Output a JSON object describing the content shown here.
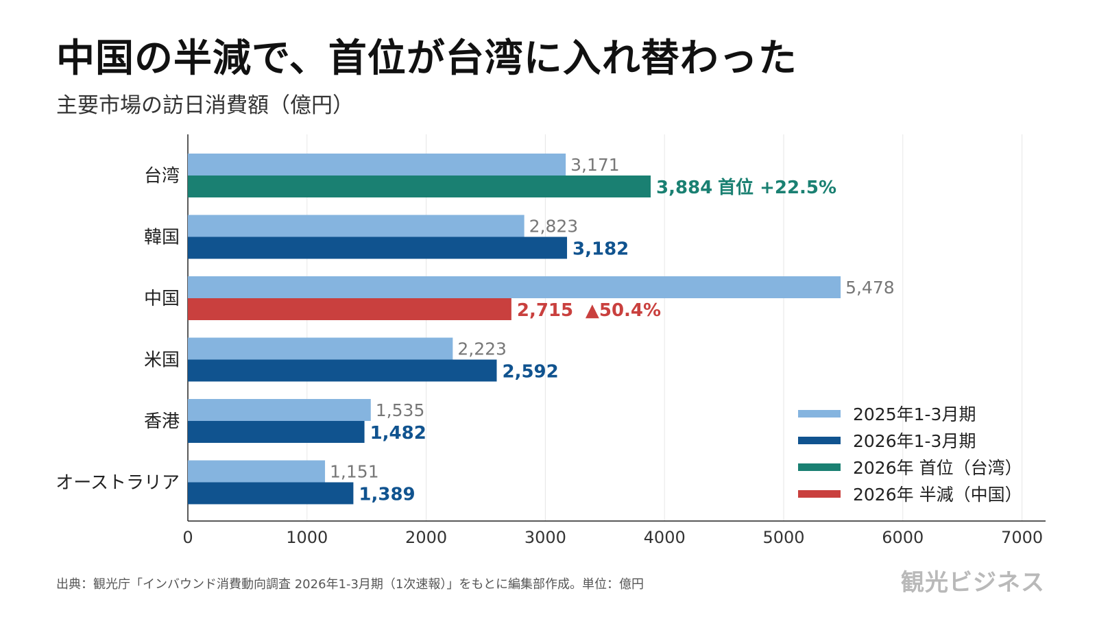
{
  "header": {
    "title": "中国の半減で、首位が台湾に入れ替わった",
    "subtitle": "主要市場の訪日消費額（億円）"
  },
  "footer": {
    "source": "出典：観光庁「インバウンド消費動向調査 2026年1-3月期（1次速報）」をもとに編集部作成。単位：億円",
    "brand": "観光ビジネス"
  },
  "colors": {
    "series_2025": "#85b4df",
    "series_2026": "#10538f",
    "highlight_first": "#1a8072",
    "highlight_half": "#c9403e",
    "label_2025": "#777777"
  },
  "chart_data": {
    "type": "bar",
    "orientation": "horizontal",
    "categories": [
      "台湾",
      "韓国",
      "中国",
      "米国",
      "香港",
      "オーストラリア"
    ],
    "series": [
      {
        "name": "2025年1-3月期",
        "values": [
          3171,
          2823,
          5478,
          2223,
          1535,
          1151
        ]
      },
      {
        "name": "2026年1-3月期",
        "values": [
          3884,
          3182,
          2715,
          2592,
          1482,
          1389
        ]
      }
    ],
    "value_labels": {
      "2025": [
        "3,171",
        "2,823",
        "5,478",
        "2,223",
        "1,535",
        "1,151"
      ],
      "2026": [
        "3,884",
        "3,182",
        "2,715",
        "2,592",
        "1,482",
        "1,389"
      ]
    },
    "annotations": [
      {
        "category": "台湾",
        "text": "首位 +22.5%"
      },
      {
        "category": "中国",
        "text": "▲50.4%"
      }
    ],
    "highlights": {
      "台湾": "highlight_first",
      "中国": "highlight_half"
    },
    "legend": [
      {
        "label": "2025年1-3月期",
        "color_key": "series_2025"
      },
      {
        "label": "2026年1-3月期",
        "color_key": "series_2026"
      },
      {
        "label": "2026年 首位（台湾）",
        "color_key": "highlight_first"
      },
      {
        "label": "2026年 半減（中国）",
        "color_key": "highlight_half"
      }
    ],
    "legend_position": "bottom-right",
    "xlim": [
      0,
      7000
    ],
    "xticks": [
      0,
      1000,
      2000,
      3000,
      4000,
      5000,
      6000,
      7000
    ],
    "grid": true
  }
}
